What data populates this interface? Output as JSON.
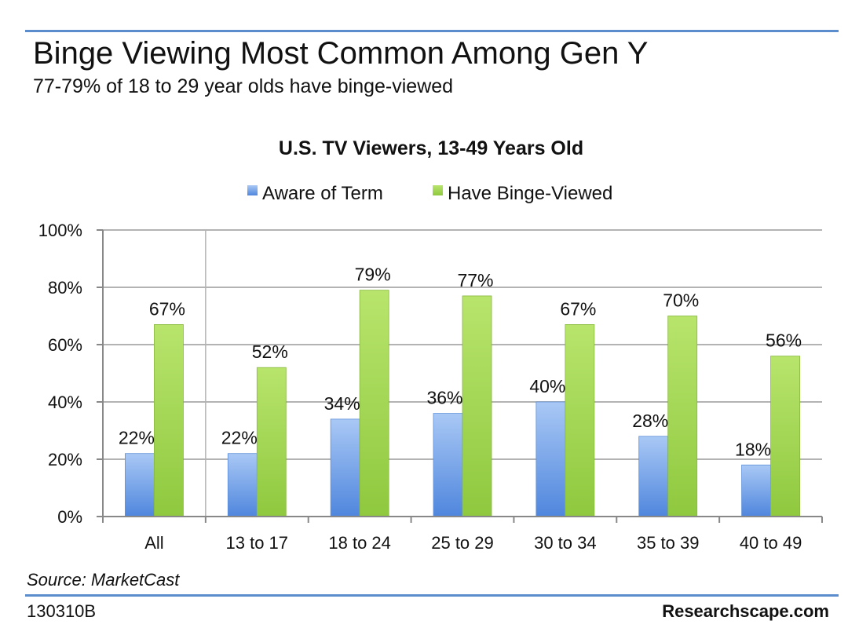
{
  "header": {
    "title": "Binge Viewing Most Common Among Gen Y",
    "subtitle": "77-79% of 18 to 29 year olds have binge-viewed"
  },
  "footer": {
    "source": "Source: MarketCast",
    "code": "130310B",
    "brand": "Researchscape.com"
  },
  "colors": {
    "rule": "#5b8ccb",
    "aware": "#6f9ee6",
    "binge": "#a8dc5a",
    "grid": "#b0b0b0"
  },
  "chart_data": {
    "type": "bar",
    "title": "U.S. TV Viewers, 13-49 Years Old",
    "categories": [
      "All",
      "13 to 17",
      "18 to 24",
      "25 to 29",
      "30 to 34",
      "35 to 39",
      "40 to 49"
    ],
    "series": [
      {
        "name": "Aware of Term",
        "values": [
          22,
          22,
          34,
          36,
          40,
          28,
          18
        ]
      },
      {
        "name": "Have Binge-Viewed",
        "values": [
          67,
          52,
          79,
          77,
          67,
          70,
          56
        ]
      }
    ],
    "ylim": [
      0,
      100
    ],
    "yticks": [
      0,
      20,
      40,
      60,
      80,
      100
    ],
    "ytick_labels": [
      "0%",
      "20%",
      "40%",
      "60%",
      "80%",
      "100%"
    ],
    "value_suffix": "%",
    "xlabel": "",
    "ylabel": "",
    "grid": true,
    "legend": "top"
  }
}
